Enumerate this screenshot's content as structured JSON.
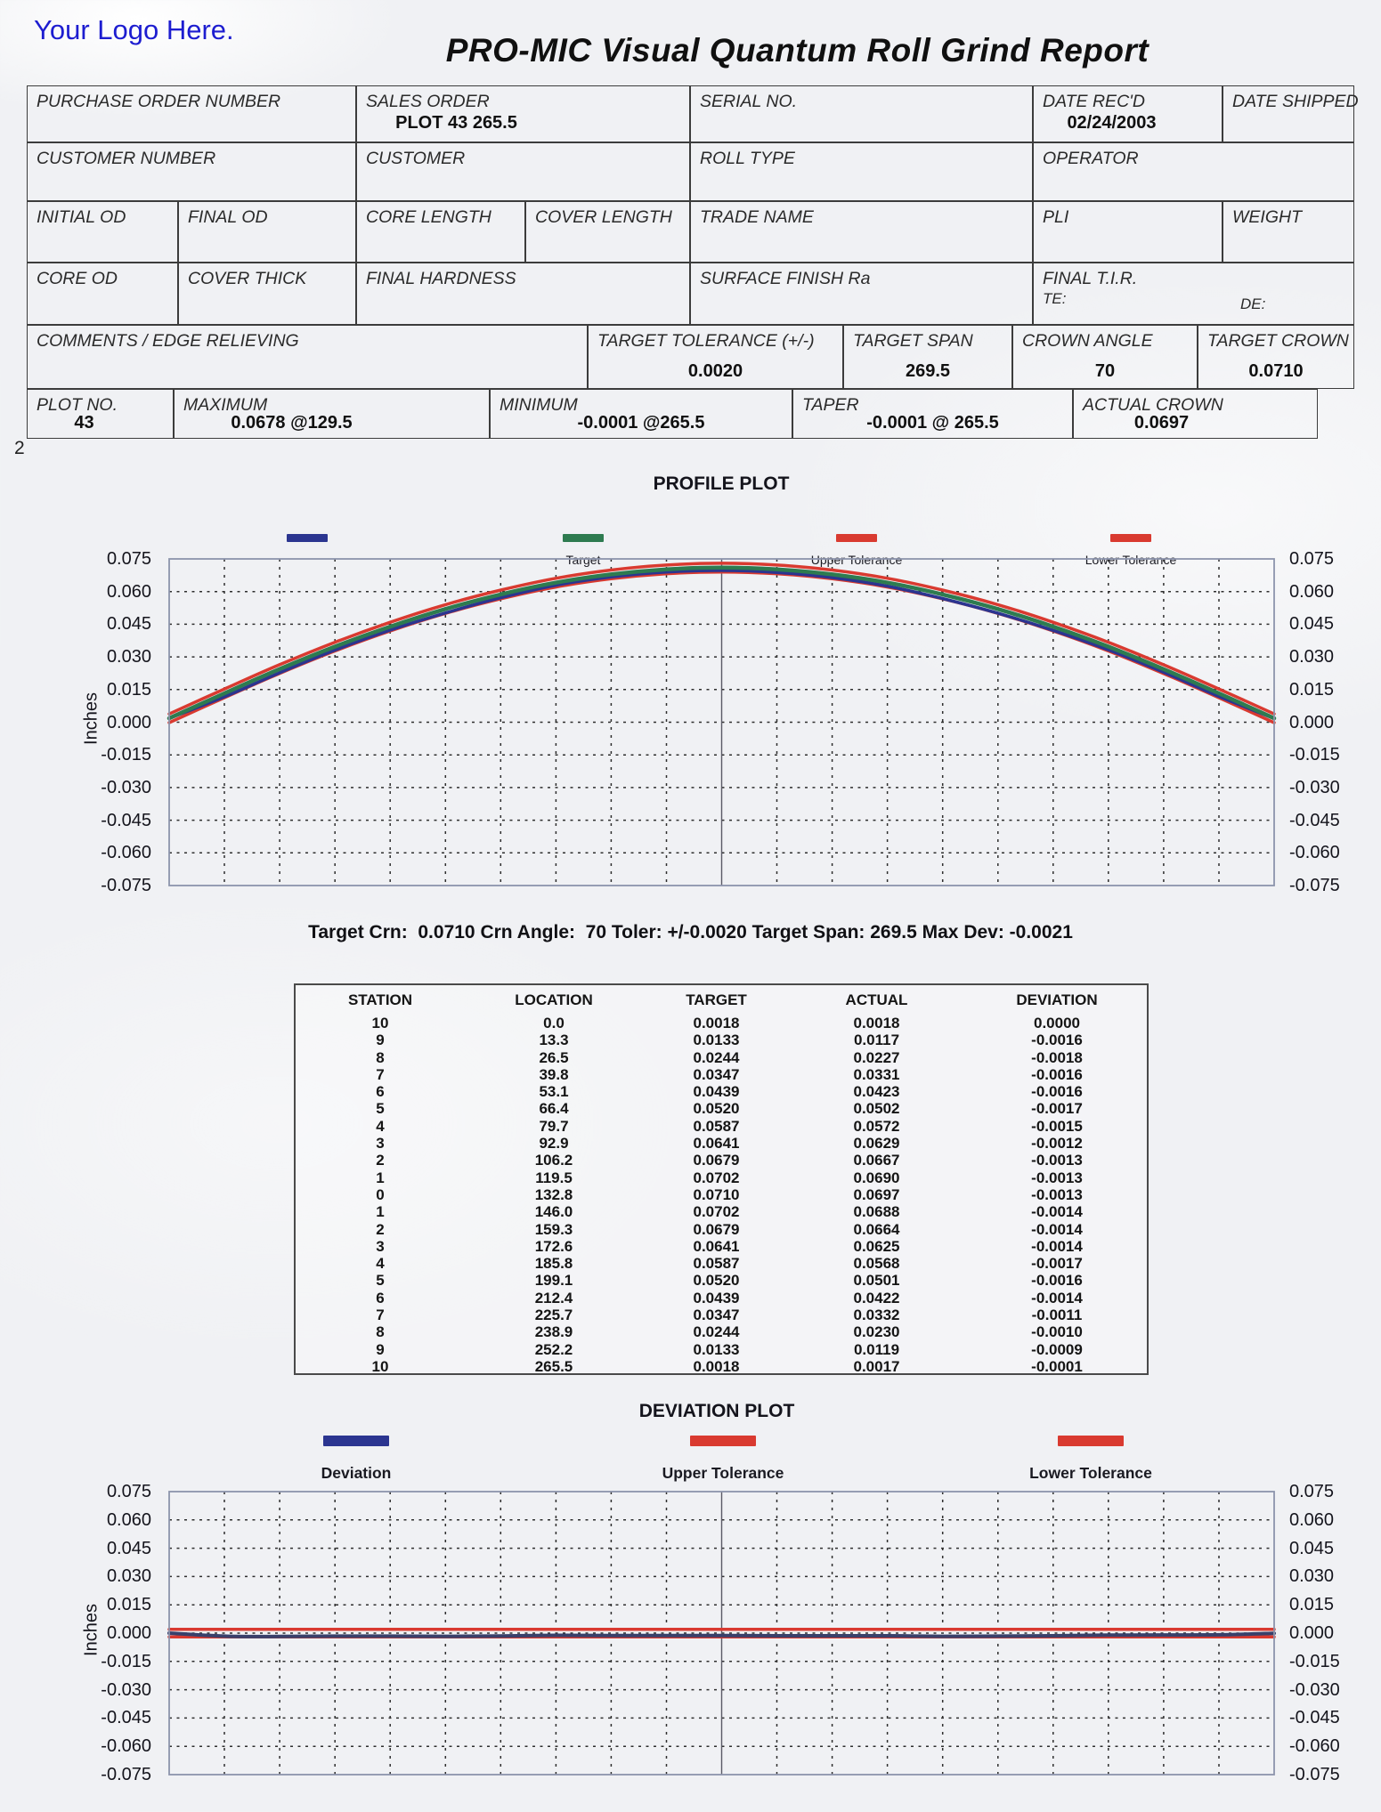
{
  "report": {
    "logo_text": "Your Logo Here.",
    "title": "PRO-MIC Visual Quantum Roll Grind Report",
    "page_number": "2"
  },
  "form": {
    "purchase_order_number": {
      "label": "PURCHASE ORDER NUMBER",
      "value": ""
    },
    "sales_order": {
      "label": "SALES ORDER",
      "value": "PLOT 43 265.5"
    },
    "serial_no": {
      "label": "SERIAL NO.",
      "value": ""
    },
    "date_recd": {
      "label": "DATE REC'D",
      "value": "02/24/2003"
    },
    "date_shipped": {
      "label": "DATE SHIPPED",
      "value": ""
    },
    "customer_number": {
      "label": "CUSTOMER NUMBER",
      "value": ""
    },
    "customer": {
      "label": "CUSTOMER",
      "value": ""
    },
    "roll_type": {
      "label": "ROLL TYPE",
      "value": ""
    },
    "operator": {
      "label": "OPERATOR",
      "value": ""
    },
    "initial_od": {
      "label": "INITIAL OD",
      "value": ""
    },
    "final_od": {
      "label": "FINAL OD",
      "value": ""
    },
    "core_length": {
      "label": "CORE LENGTH",
      "value": ""
    },
    "cover_length": {
      "label": "COVER LENGTH",
      "value": ""
    },
    "trade_name": {
      "label": "TRADE NAME",
      "value": ""
    },
    "pli": {
      "label": "PLI",
      "value": ""
    },
    "weight": {
      "label": "WEIGHT",
      "value": ""
    },
    "core_od": {
      "label": "CORE OD",
      "value": ""
    },
    "cover_thick": {
      "label": "COVER THICK",
      "value": ""
    },
    "final_hardness": {
      "label": "FINAL HARDNESS",
      "value": ""
    },
    "surface_finish": {
      "label": "SURFACE FINISH Ra",
      "value": ""
    },
    "final_tir": {
      "label": "FINAL T.I.R.",
      "te_label": "TE:",
      "de_label": "DE:"
    },
    "comments": {
      "label": "COMMENTS / EDGE RELIEVING",
      "value": ""
    },
    "target_tolerance": {
      "label": "TARGET TOLERANCE (+/-)",
      "value": "0.0020"
    },
    "target_span": {
      "label": "TARGET SPAN",
      "value": "269.5"
    },
    "crown_angle": {
      "label": "CROWN ANGLE",
      "value": "70"
    },
    "target_crown": {
      "label": "TARGET CROWN",
      "value": "0.0710"
    },
    "plot_no": {
      "label": "PLOT NO.",
      "value": "43"
    },
    "maximum": {
      "label": "MAXIMUM",
      "value": "0.0678 @129.5"
    },
    "minimum": {
      "label": "MINIMUM",
      "value": "-0.0001 @265.5"
    },
    "taper": {
      "label": "TAPER",
      "value": "-0.0001 @ 265.5"
    },
    "actual_crown": {
      "label": "ACTUAL CROWN",
      "value": "0.0697"
    }
  },
  "profile_plot": {
    "title": "PROFILE PLOT",
    "ylabel": "Inches",
    "legend": [
      {
        "label": "",
        "color": "#2b3590"
      },
      {
        "label": "Target",
        "color": "#2e7b50"
      },
      {
        "label": "Upper Tolerance",
        "color": "#d93a30"
      },
      {
        "label": "Lower Tolerance",
        "color": "#d93a30"
      }
    ],
    "summary": "Target Crn:  0.0710 Crn Angle:  70 Toler: +/-0.0020 Target Span: 269.5 Max Dev: -0.0021"
  },
  "station_table": {
    "headers": [
      "STATION",
      "LOCATION",
      "TARGET",
      "ACTUAL",
      "DEVIATION"
    ],
    "rows": [
      [
        "10",
        "0.0",
        "0.0018",
        "0.0018",
        "0.0000"
      ],
      [
        "9",
        "13.3",
        "0.0133",
        "0.0117",
        "-0.0016"
      ],
      [
        "8",
        "26.5",
        "0.0244",
        "0.0227",
        "-0.0018"
      ],
      [
        "7",
        "39.8",
        "0.0347",
        "0.0331",
        "-0.0016"
      ],
      [
        "6",
        "53.1",
        "0.0439",
        "0.0423",
        "-0.0016"
      ],
      [
        "5",
        "66.4",
        "0.0520",
        "0.0502",
        "-0.0017"
      ],
      [
        "4",
        "79.7",
        "0.0587",
        "0.0572",
        "-0.0015"
      ],
      [
        "3",
        "92.9",
        "0.0641",
        "0.0629",
        "-0.0012"
      ],
      [
        "2",
        "106.2",
        "0.0679",
        "0.0667",
        "-0.0013"
      ],
      [
        "1",
        "119.5",
        "0.0702",
        "0.0690",
        "-0.0013"
      ],
      [
        "0",
        "132.8",
        "0.0710",
        "0.0697",
        "-0.0013"
      ],
      [
        "1",
        "146.0",
        "0.0702",
        "0.0688",
        "-0.0014"
      ],
      [
        "2",
        "159.3",
        "0.0679",
        "0.0664",
        "-0.0014"
      ],
      [
        "3",
        "172.6",
        "0.0641",
        "0.0625",
        "-0.0014"
      ],
      [
        "4",
        "185.8",
        "0.0587",
        "0.0568",
        "-0.0017"
      ],
      [
        "5",
        "199.1",
        "0.0520",
        "0.0501",
        "-0.0016"
      ],
      [
        "6",
        "212.4",
        "0.0439",
        "0.0422",
        "-0.0014"
      ],
      [
        "7",
        "225.7",
        "0.0347",
        "0.0332",
        "-0.0011"
      ],
      [
        "8",
        "238.9",
        "0.0244",
        "0.0230",
        "-0.0010"
      ],
      [
        "9",
        "252.2",
        "0.0133",
        "0.0119",
        "-0.0009"
      ],
      [
        "10",
        "265.5",
        "0.0018",
        "0.0017",
        "-0.0001"
      ]
    ]
  },
  "deviation_plot": {
    "title": "DEVIATION PLOT",
    "ylabel": "Inches",
    "legend": [
      {
        "label": "Deviation",
        "color": "#2b3590"
      },
      {
        "label": "Upper Tolerance",
        "color": "#d93a30"
      },
      {
        "label": "Lower Tolerance",
        "color": "#d93a30"
      }
    ]
  },
  "chart_data": [
    {
      "type": "line",
      "title": "PROFILE PLOT",
      "ylabel": "Inches",
      "ylim": [
        -0.075,
        0.075
      ],
      "yticks": [
        "0.075",
        "0.060",
        "0.045",
        "0.030",
        "0.015",
        "0.000",
        "-0.015",
        "-0.030",
        "-0.045",
        "-0.060",
        "-0.075"
      ],
      "xlim": [
        0,
        265.5
      ],
      "x": [
        0,
        13.3,
        26.5,
        39.8,
        53.1,
        66.4,
        79.7,
        92.9,
        106.2,
        119.5,
        132.8,
        146.0,
        159.3,
        172.6,
        185.8,
        199.1,
        212.4,
        225.7,
        238.9,
        252.2,
        265.5
      ],
      "grid": true,
      "legend_position": "top",
      "series": [
        {
          "name": "Upper Tolerance",
          "color": "#d93a30",
          "width": 3.5,
          "values": [
            0.0038,
            0.0153,
            0.0264,
            0.0367,
            0.0459,
            0.054,
            0.0607,
            0.0661,
            0.0699,
            0.0722,
            0.073,
            0.0722,
            0.0699,
            0.0661,
            0.0607,
            0.054,
            0.0459,
            0.0367,
            0.0264,
            0.0153,
            0.0038
          ]
        },
        {
          "name": "Lower Tolerance",
          "color": "#d93a30",
          "width": 3.5,
          "values": [
            -0.0002,
            0.0113,
            0.0224,
            0.0327,
            0.0419,
            0.05,
            0.0567,
            0.0621,
            0.0659,
            0.0682,
            0.069,
            0.0682,
            0.0659,
            0.0621,
            0.0567,
            0.05,
            0.0419,
            0.0327,
            0.0224,
            0.0113,
            -0.0002
          ]
        },
        {
          "name": "Actual",
          "color": "#2b3590",
          "width": 3.5,
          "values": [
            0.0018,
            0.0117,
            0.0227,
            0.0331,
            0.0423,
            0.0502,
            0.0572,
            0.0629,
            0.0667,
            0.069,
            0.0697,
            0.0688,
            0.0664,
            0.0625,
            0.0568,
            0.0501,
            0.0422,
            0.0332,
            0.023,
            0.0119,
            0.0017
          ]
        },
        {
          "name": "Target",
          "color": "#2e7b50",
          "width": 4.5,
          "values": [
            0.0018,
            0.0133,
            0.0244,
            0.0347,
            0.0439,
            0.052,
            0.0587,
            0.0641,
            0.0679,
            0.0702,
            0.071,
            0.0702,
            0.0679,
            0.0641,
            0.0587,
            0.052,
            0.0439,
            0.0347,
            0.0244,
            0.0133,
            0.0018
          ]
        }
      ]
    },
    {
      "type": "line",
      "title": "DEVIATION PLOT",
      "ylabel": "Inches",
      "ylim": [
        -0.075,
        0.075
      ],
      "yticks": [
        "0.075",
        "0.060",
        "0.045",
        "0.030",
        "0.015",
        "0.000",
        "-0.015",
        "-0.030",
        "-0.045",
        "-0.060",
        "-0.075"
      ],
      "xlim": [
        0,
        265.5
      ],
      "x": [
        0,
        13.3,
        26.5,
        39.8,
        53.1,
        66.4,
        79.7,
        92.9,
        106.2,
        119.5,
        132.8,
        146.0,
        159.3,
        172.6,
        185.8,
        199.1,
        212.4,
        225.7,
        238.9,
        252.2,
        265.5
      ],
      "grid": true,
      "legend_position": "top",
      "series": [
        {
          "name": "Upper Tolerance",
          "color": "#d93a30",
          "width": 3.5,
          "x": [
            0,
            265.5
          ],
          "values": [
            0.002,
            0.002
          ]
        },
        {
          "name": "Lower Tolerance",
          "color": "#d93a30",
          "width": 3.5,
          "x": [
            0,
            265.5
          ],
          "values": [
            -0.002,
            -0.002
          ]
        },
        {
          "name": "Deviation",
          "color": "#39406b",
          "width": 4,
          "values": [
            0.0,
            -0.0016,
            -0.0018,
            -0.0016,
            -0.0016,
            -0.0017,
            -0.0015,
            -0.0012,
            -0.0013,
            -0.0013,
            -0.0013,
            -0.0014,
            -0.0014,
            -0.0014,
            -0.0017,
            -0.0016,
            -0.0014,
            -0.0011,
            -0.001,
            -0.0009,
            -0.0001
          ]
        }
      ]
    }
  ]
}
